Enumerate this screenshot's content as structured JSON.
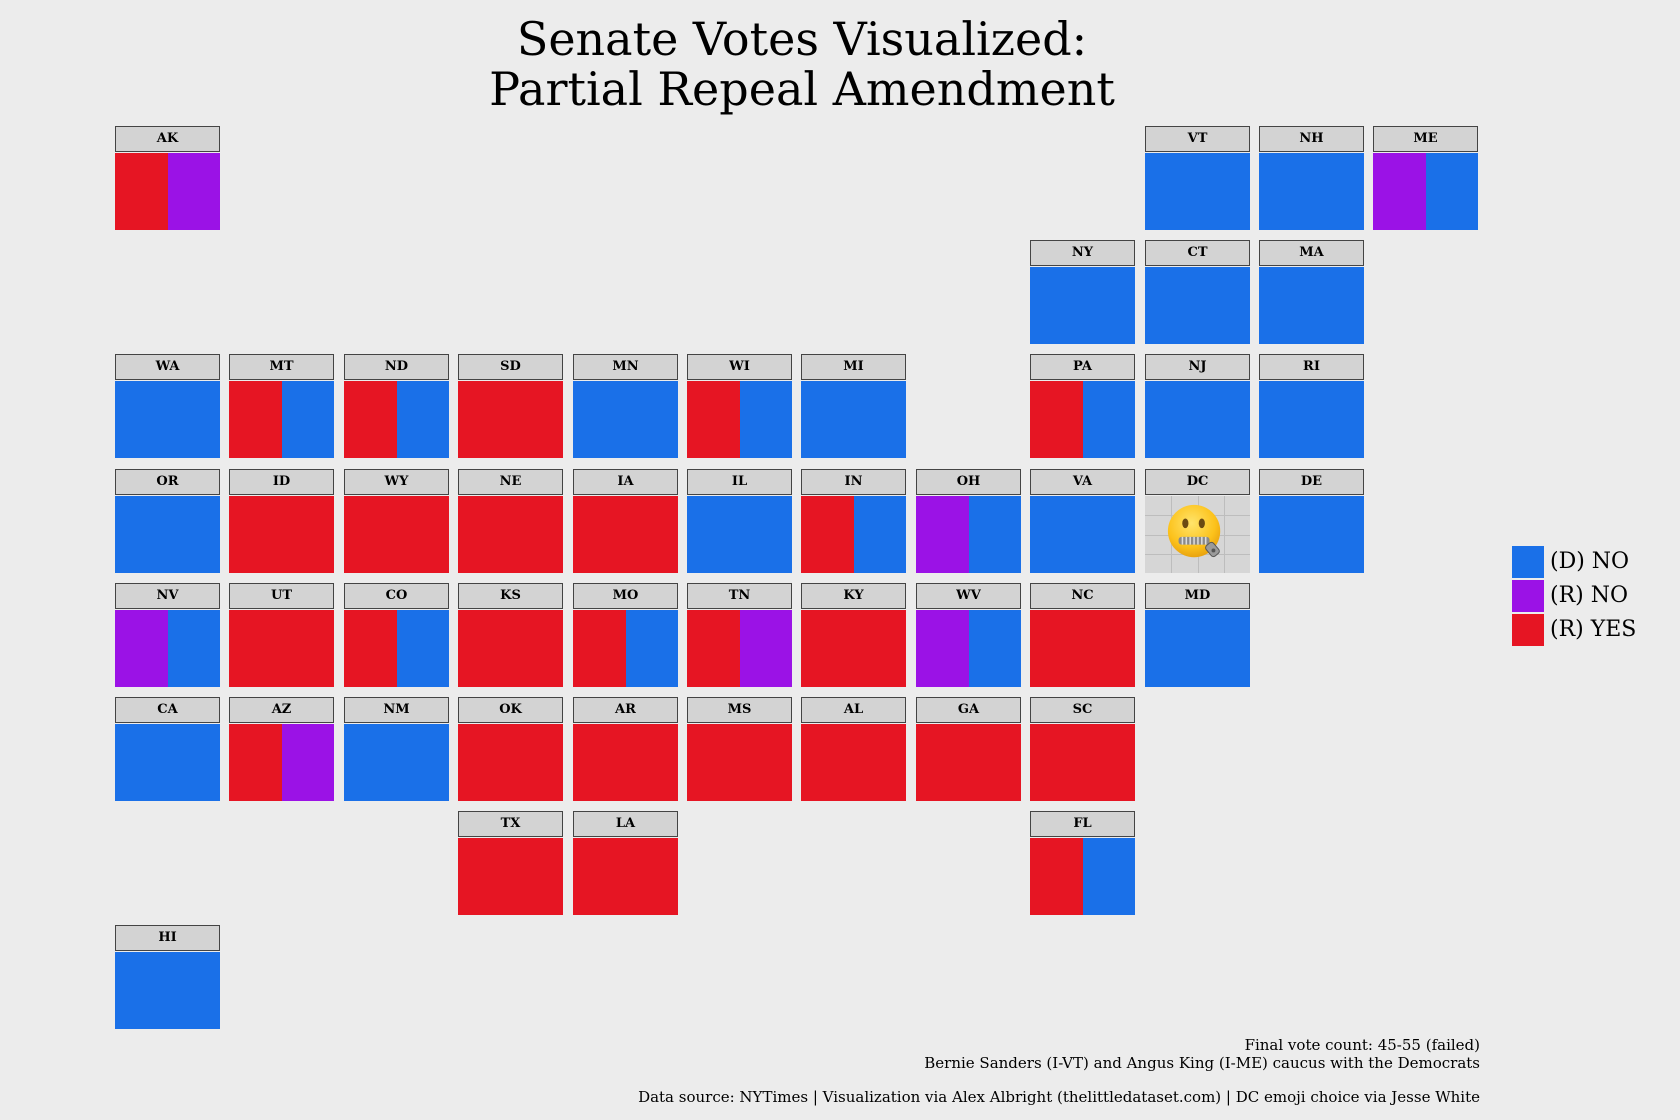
{
  "title": {
    "line1": "Senate Votes Visualized:",
    "line2": "Partial Repeal Amendment"
  },
  "colors": {
    "D_NO": "#1a70e8",
    "R_NO": "#9b12e6",
    "R_YES": "#e61523"
  },
  "chart_data": {
    "type": "tile-grid map",
    "legend": [
      {
        "key": "D_NO",
        "label": "(D) NO"
      },
      {
        "key": "R_NO",
        "label": "(R) NO"
      },
      {
        "key": "R_YES",
        "label": "(R) YES"
      }
    ],
    "legend_position": "right",
    "states": [
      {
        "abbr": "AK",
        "row": 0,
        "col": 0,
        "votes": [
          "R_YES",
          "R_NO"
        ]
      },
      {
        "abbr": "VT",
        "row": 0,
        "col": 9,
        "votes": [
          "D_NO"
        ]
      },
      {
        "abbr": "NH",
        "row": 0,
        "col": 10,
        "votes": [
          "D_NO"
        ]
      },
      {
        "abbr": "ME",
        "row": 0,
        "col": 11,
        "votes": [
          "R_NO",
          "D_NO"
        ]
      },
      {
        "abbr": "NY",
        "row": 1,
        "col": 8,
        "votes": [
          "D_NO"
        ]
      },
      {
        "abbr": "CT",
        "row": 1,
        "col": 9,
        "votes": [
          "D_NO"
        ]
      },
      {
        "abbr": "MA",
        "row": 1,
        "col": 10,
        "votes": [
          "D_NO"
        ]
      },
      {
        "abbr": "WA",
        "row": 2,
        "col": 0,
        "votes": [
          "D_NO"
        ]
      },
      {
        "abbr": "MT",
        "row": 2,
        "col": 1,
        "votes": [
          "R_YES",
          "D_NO"
        ]
      },
      {
        "abbr": "ND",
        "row": 2,
        "col": 2,
        "votes": [
          "R_YES",
          "D_NO"
        ]
      },
      {
        "abbr": "SD",
        "row": 2,
        "col": 3,
        "votes": [
          "R_YES"
        ]
      },
      {
        "abbr": "MN",
        "row": 2,
        "col": 4,
        "votes": [
          "D_NO"
        ]
      },
      {
        "abbr": "WI",
        "row": 2,
        "col": 5,
        "votes": [
          "R_YES",
          "D_NO"
        ]
      },
      {
        "abbr": "MI",
        "row": 2,
        "col": 6,
        "votes": [
          "D_NO"
        ]
      },
      {
        "abbr": "PA",
        "row": 2,
        "col": 8,
        "votes": [
          "R_YES",
          "D_NO"
        ]
      },
      {
        "abbr": "NJ",
        "row": 2,
        "col": 9,
        "votes": [
          "D_NO"
        ]
      },
      {
        "abbr": "RI",
        "row": 2,
        "col": 10,
        "votes": [
          "D_NO"
        ]
      },
      {
        "abbr": "OR",
        "row": 3,
        "col": 0,
        "votes": [
          "D_NO"
        ]
      },
      {
        "abbr": "ID",
        "row": 3,
        "col": 1,
        "votes": [
          "R_YES"
        ]
      },
      {
        "abbr": "WY",
        "row": 3,
        "col": 2,
        "votes": [
          "R_YES"
        ]
      },
      {
        "abbr": "NE",
        "row": 3,
        "col": 3,
        "votes": [
          "R_YES"
        ]
      },
      {
        "abbr": "IA",
        "row": 3,
        "col": 4,
        "votes": [
          "R_YES"
        ]
      },
      {
        "abbr": "IL",
        "row": 3,
        "col": 5,
        "votes": [
          "D_NO"
        ]
      },
      {
        "abbr": "IN",
        "row": 3,
        "col": 6,
        "votes": [
          "R_YES",
          "D_NO"
        ]
      },
      {
        "abbr": "OH",
        "row": 3,
        "col": 7,
        "votes": [
          "R_NO",
          "D_NO"
        ]
      },
      {
        "abbr": "VA",
        "row": 3,
        "col": 8,
        "votes": [
          "D_NO"
        ]
      },
      {
        "abbr": "DC",
        "row": 3,
        "col": 9,
        "votes": [],
        "icon": "zipper-mouth-face-emoji"
      },
      {
        "abbr": "DE",
        "row": 3,
        "col": 10,
        "votes": [
          "D_NO"
        ]
      },
      {
        "abbr": "NV",
        "row": 4,
        "col": 0,
        "votes": [
          "R_NO",
          "D_NO"
        ]
      },
      {
        "abbr": "UT",
        "row": 4,
        "col": 1,
        "votes": [
          "R_YES"
        ]
      },
      {
        "abbr": "CO",
        "row": 4,
        "col": 2,
        "votes": [
          "R_YES",
          "D_NO"
        ]
      },
      {
        "abbr": "KS",
        "row": 4,
        "col": 3,
        "votes": [
          "R_YES"
        ]
      },
      {
        "abbr": "MO",
        "row": 4,
        "col": 4,
        "votes": [
          "R_YES",
          "D_NO"
        ]
      },
      {
        "abbr": "TN",
        "row": 4,
        "col": 5,
        "votes": [
          "R_YES",
          "R_NO"
        ]
      },
      {
        "abbr": "KY",
        "row": 4,
        "col": 6,
        "votes": [
          "R_YES"
        ]
      },
      {
        "abbr": "WV",
        "row": 4,
        "col": 7,
        "votes": [
          "R_NO",
          "D_NO"
        ]
      },
      {
        "abbr": "NC",
        "row": 4,
        "col": 8,
        "votes": [
          "R_YES"
        ]
      },
      {
        "abbr": "MD",
        "row": 4,
        "col": 9,
        "votes": [
          "D_NO"
        ]
      },
      {
        "abbr": "CA",
        "row": 5,
        "col": 0,
        "votes": [
          "D_NO"
        ]
      },
      {
        "abbr": "AZ",
        "row": 5,
        "col": 1,
        "votes": [
          "R_YES",
          "R_NO"
        ]
      },
      {
        "abbr": "NM",
        "row": 5,
        "col": 2,
        "votes": [
          "D_NO"
        ]
      },
      {
        "abbr": "OK",
        "row": 5,
        "col": 3,
        "votes": [
          "R_YES"
        ]
      },
      {
        "abbr": "AR",
        "row": 5,
        "col": 4,
        "votes": [
          "R_YES"
        ]
      },
      {
        "abbr": "MS",
        "row": 5,
        "col": 5,
        "votes": [
          "R_YES"
        ]
      },
      {
        "abbr": "AL",
        "row": 5,
        "col": 6,
        "votes": [
          "R_YES"
        ]
      },
      {
        "abbr": "GA",
        "row": 5,
        "col": 7,
        "votes": [
          "R_YES"
        ]
      },
      {
        "abbr": "SC",
        "row": 5,
        "col": 8,
        "votes": [
          "R_YES"
        ]
      },
      {
        "abbr": "TX",
        "row": 6,
        "col": 3,
        "votes": [
          "R_YES"
        ]
      },
      {
        "abbr": "LA",
        "row": 6,
        "col": 4,
        "votes": [
          "R_YES"
        ]
      },
      {
        "abbr": "FL",
        "row": 6,
        "col": 8,
        "votes": [
          "R_YES",
          "D_NO"
        ]
      },
      {
        "abbr": "HI",
        "row": 7,
        "col": 0,
        "votes": [
          "D_NO"
        ]
      }
    ]
  },
  "footer": {
    "vote_count": "Final vote count: 45-55 (failed)",
    "caucus_note": "Bernie Sanders (I-VT) and Angus King (I-ME) caucus with the Democrats",
    "source": "Data source: NYTimes  |  Visualization via Alex Albright (thelittledataset.com)  |  DC emoji choice via Jesse White"
  }
}
